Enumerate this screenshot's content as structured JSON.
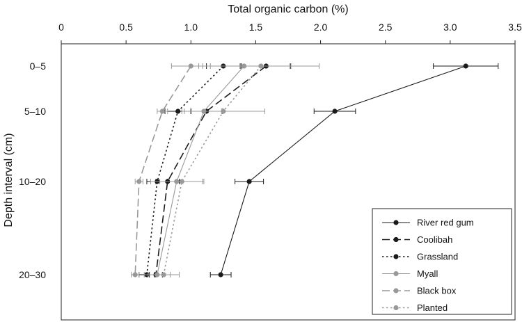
{
  "chart_data": {
    "type": "line",
    "title": "",
    "xlabel": "Total organic carbon (%)",
    "ylabel": "Depth interval (cm)",
    "xlim": [
      0,
      3.5
    ],
    "x_ticks": [
      "0",
      "0.5",
      "1.0",
      "1.5",
      "2.0",
      "2.5",
      "3.0",
      "3.5"
    ],
    "x_axis_position": "top",
    "categories": [
      "0–5",
      "5–10",
      "10–20",
      "20–30"
    ],
    "category_depths": [
      2.5,
      7.5,
      15,
      25
    ],
    "y_inverted": true,
    "legend_position": "bottom-right",
    "grid": false,
    "series": [
      {
        "name": "River red gum",
        "color": "#1a1a1a",
        "dash": "solid",
        "values": [
          3.12,
          2.11,
          1.45,
          1.23
        ],
        "errors": [
          0.25,
          0.16,
          0.11,
          0.08
        ]
      },
      {
        "name": "Coolibah",
        "color": "#1a1a1a",
        "dash": "long",
        "values": [
          1.58,
          1.12,
          0.82,
          0.73
        ],
        "errors": [
          0.19,
          0.12,
          0.09,
          0.05
        ]
      },
      {
        "name": "Grassland",
        "color": "#1a1a1a",
        "dash": "dot",
        "values": [
          1.25,
          0.9,
          0.74,
          0.66
        ],
        "errors": [
          0.13,
          0.1,
          0.08,
          0.06
        ]
      },
      {
        "name": "Myall",
        "color": "#999999",
        "dash": "solid",
        "values": [
          1.41,
          1.1,
          0.89,
          0.74
        ],
        "errors": [
          0.35,
          0.15,
          0.2,
          0.1
        ]
      },
      {
        "name": "Black box",
        "color": "#999999",
        "dash": "long",
        "values": [
          1.0,
          0.78,
          0.6,
          0.57
        ],
        "errors": [
          0.15,
          0.04,
          0.03,
          0.03
        ]
      },
      {
        "name": "Planted",
        "color": "#999999",
        "dash": "dot",
        "values": [
          1.54,
          1.25,
          0.93,
          0.79
        ],
        "errors": [
          0.45,
          0.32,
          0.17,
          0.12
        ]
      }
    ]
  }
}
